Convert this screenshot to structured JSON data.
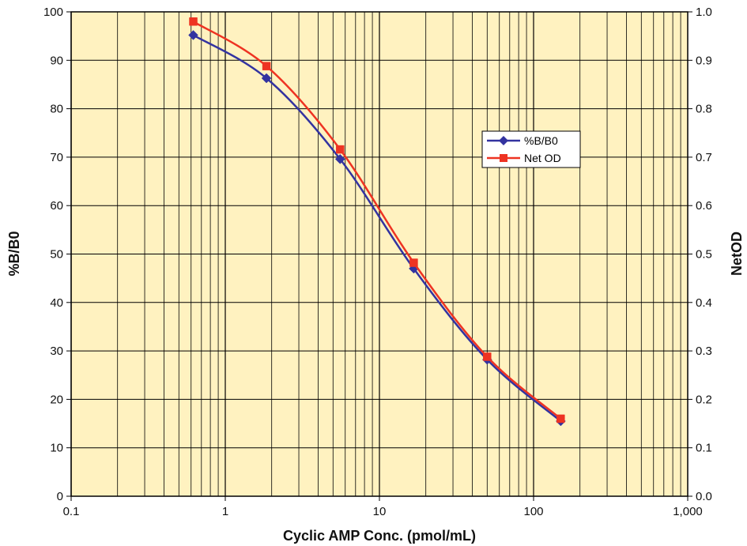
{
  "chart_data": {
    "type": "line",
    "title": "",
    "xlabel": "Cyclic AMP Conc. (pmol/mL)",
    "ylabel": "%B/B0",
    "y2label": "NetOD",
    "x_scale": "log",
    "xlim": [
      0.1,
      1000
    ],
    "ylim": [
      0,
      100
    ],
    "y2lim": [
      0.0,
      1.0
    ],
    "x_ticks": [
      0.1,
      1,
      10,
      100,
      1000
    ],
    "x_tick_labels": [
      "0.1",
      "1",
      "10",
      "100",
      "1,000"
    ],
    "y_ticks": [
      0,
      10,
      20,
      30,
      40,
      50,
      60,
      70,
      80,
      90,
      100
    ],
    "y_tick_labels": [
      "0",
      "10",
      "20",
      "30",
      "40",
      "50",
      "60",
      "70",
      "80",
      "90",
      "100"
    ],
    "y2_ticks": [
      0.0,
      0.1,
      0.2,
      0.3,
      0.4,
      0.5,
      0.6,
      0.7,
      0.8,
      0.9,
      1.0
    ],
    "y2_tick_labels": [
      "0.0",
      "0.1",
      "0.2",
      "0.3",
      "0.4",
      "0.5",
      "0.6",
      "0.7",
      "0.8",
      "0.9",
      "1.0"
    ],
    "grid": true,
    "background_color": "#FFF2C0",
    "legend_position": "center-right",
    "series": [
      {
        "name": "%B/B0",
        "axis": "left",
        "color": "#3333A0",
        "marker": "diamond",
        "x": [
          0.62,
          1.85,
          5.56,
          16.7,
          50,
          150
        ],
        "y": [
          95.2,
          86.3,
          69.6,
          47.0,
          28.2,
          15.5
        ]
      },
      {
        "name": "Net OD",
        "axis": "right",
        "color": "#EE3322",
        "marker": "square",
        "x": [
          0.62,
          1.85,
          5.56,
          16.7,
          50,
          150
        ],
        "y": [
          0.98,
          0.888,
          0.716,
          0.482,
          0.288,
          0.16
        ]
      }
    ]
  }
}
